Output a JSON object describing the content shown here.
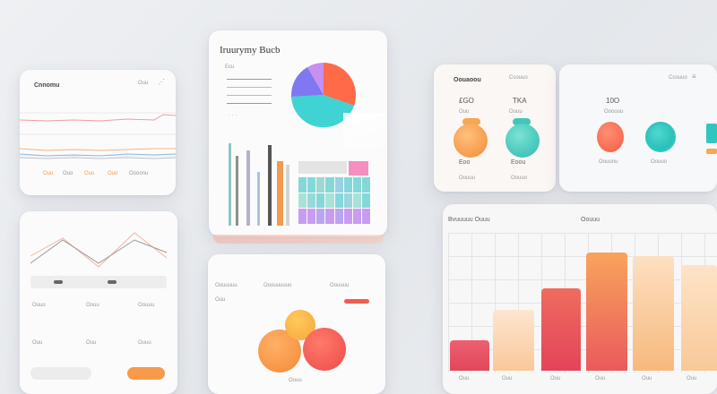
{
  "card_trend": {
    "title": "Cnnomu",
    "header_right": "Ouu",
    "footer_labels": [
      "Ouu",
      "Ouo",
      "Ouu",
      "Ouo",
      "Oooonu"
    ]
  },
  "card_main": {
    "title": "Iruurymy Bucb",
    "subtitle": "Ecu",
    "colors": {
      "pie": [
        "#ff6a48",
        "#3fd3d3",
        "#7f78f0",
        "#c88ef0"
      ],
      "columns": [
        "#88c9c4",
        "#8f8f8f",
        "#f39a4e",
        "#a8c4de"
      ],
      "grid": [
        "#84d8d8",
        "#c89cf0",
        "#f48fc0"
      ]
    }
  },
  "card_stats": {
    "header_left": "Oouaoou",
    "header_right": "Ccouuo",
    "stats": [
      {
        "value": "£GO",
        "label": "Ouu",
        "caption": "Eoo"
      },
      {
        "value": "TKA",
        "label": "Ouuu",
        "caption": "Eoou"
      },
      {
        "value": "10O",
        "label": "Oooouu",
        "caption": "Oouunu"
      }
    ],
    "footer_labels": [
      "Oouuu",
      "Oouuo"
    ],
    "colors": [
      "#f89a4a",
      "#3fc7bb",
      "#ff6a48",
      "#2fc5c0"
    ]
  },
  "card_lines": {
    "table": [
      [
        "Ouuo",
        "Oouu",
        "Oouuu"
      ],
      [
        "Ouu",
        "Ouu",
        "Ouuu"
      ]
    ],
    "button_label": ""
  },
  "card_bubbles": {
    "header": [
      "Oouuuuu",
      "Ooouuuuuo",
      "Oouuuu"
    ],
    "labels": [
      "Ouu",
      "Oouu"
    ],
    "colors": [
      "#f5943e",
      "#f25a50",
      "#fbb540"
    ]
  },
  "card_bars": {
    "title": "Bvuuuuu Ouuu",
    "title_right": "Oouuu",
    "bar_labels": [
      "Ouu",
      "Ouu",
      "Ouu",
      "Ouu",
      "Ouu",
      "Ouu"
    ],
    "colors": {
      "bar_top": "#f6a65a",
      "bar_bottom": "#e54a5c",
      "peach": "#f8cf9f"
    }
  }
}
